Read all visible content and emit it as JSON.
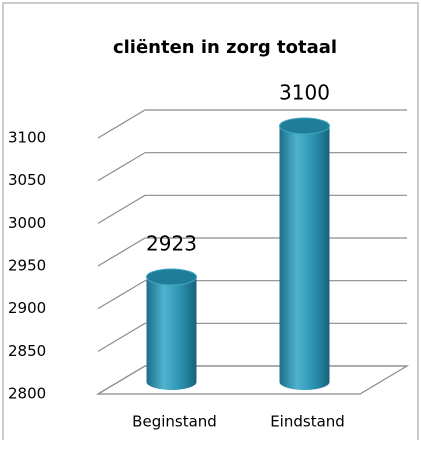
{
  "chart_data": {
    "type": "bar",
    "title": "cliënten in zorg totaal",
    "categories": [
      "Beginstand",
      "Eindstand"
    ],
    "values": [
      2923,
      3100
    ],
    "color": "#2a8fae",
    "ylim": [
      2800,
      3100
    ],
    "yticks": [
      2800,
      2850,
      2900,
      2950,
      3000,
      3050,
      3100
    ],
    "grid": true
  }
}
